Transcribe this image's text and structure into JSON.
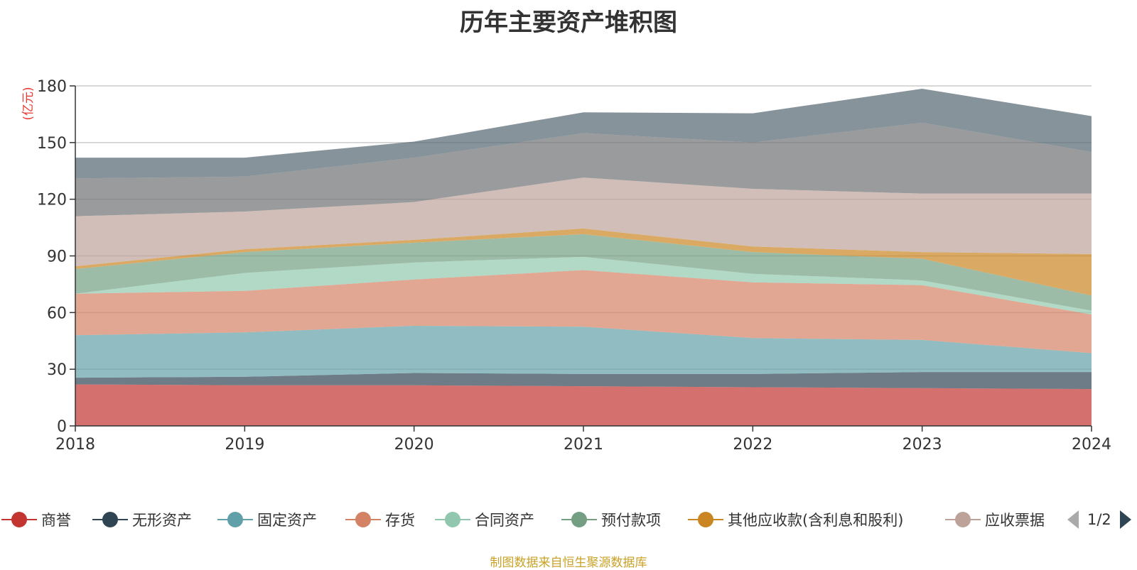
{
  "chart_data": {
    "type": "area",
    "title": "历年主要资产堆积图",
    "unit_label": "(亿元)",
    "x": [
      "2018",
      "2019",
      "2020",
      "2021",
      "2022",
      "2023",
      "2024"
    ],
    "ylim": [
      0,
      180
    ],
    "yticks": [
      0,
      30,
      60,
      90,
      120,
      150,
      180
    ],
    "stacked": true,
    "grid": true,
    "series": [
      {
        "name": "商誉",
        "color": "#c23531",
        "values": [
          22,
          21.5,
          21.5,
          21,
          20.5,
          20,
          19.5
        ]
      },
      {
        "name": "无形资产",
        "color": "#2f4554",
        "values": [
          3.5,
          4.5,
          6.5,
          6.5,
          7,
          8.5,
          9
        ]
      },
      {
        "name": "固定资产",
        "color": "#61a0a8",
        "values": [
          22.5,
          23.5,
          25,
          25,
          19,
          17,
          10
        ]
      },
      {
        "name": "存货",
        "color": "#d48265",
        "values": [
          22,
          22,
          24.5,
          30,
          29.5,
          29,
          20.5
        ]
      },
      {
        "name": "合同资产",
        "color": "#91c7ae",
        "values": [
          0,
          9.5,
          9,
          7,
          4.5,
          2.5,
          2
        ]
      },
      {
        "name": "预付款项",
        "color": "#749f83",
        "values": [
          13,
          11,
          10.5,
          12,
          11.5,
          11.5,
          8
        ]
      },
      {
        "name": "其他应收款(含利息和股利)",
        "color": "#ca8622",
        "values": [
          1.5,
          1.5,
          1.5,
          3,
          3,
          3.5,
          22
        ]
      },
      {
        "name": "应收票据",
        "color": "#bda29a",
        "values": [
          26.5,
          20,
          20,
          27,
          30.5,
          31,
          32
        ]
      },
      {
        "name": "",
        "color": "#6e7074",
        "values": [
          20,
          18.5,
          23.5,
          23.5,
          24.5,
          37.5,
          22
        ]
      },
      {
        "name": "",
        "color": "#546570",
        "values": [
          11,
          10,
          8.5,
          11,
          15.5,
          18,
          19
        ]
      }
    ]
  },
  "legend": {
    "items": [
      {
        "label": "商誉",
        "color": "#c23531"
      },
      {
        "label": "无形资产",
        "color": "#2f4554"
      },
      {
        "label": "固定资产",
        "color": "#61a0a8"
      },
      {
        "label": "存货",
        "color": "#d48265"
      },
      {
        "label": "合同资产",
        "color": "#91c7ae"
      },
      {
        "label": "预付款项",
        "color": "#749f83"
      },
      {
        "label": "其他应收款(含利息和股利)",
        "color": "#ca8622"
      },
      {
        "label": "应收票据",
        "color": "#bda29a"
      }
    ],
    "page": "1/2"
  },
  "source_note": "制图数据来自恒生聚源数据库"
}
